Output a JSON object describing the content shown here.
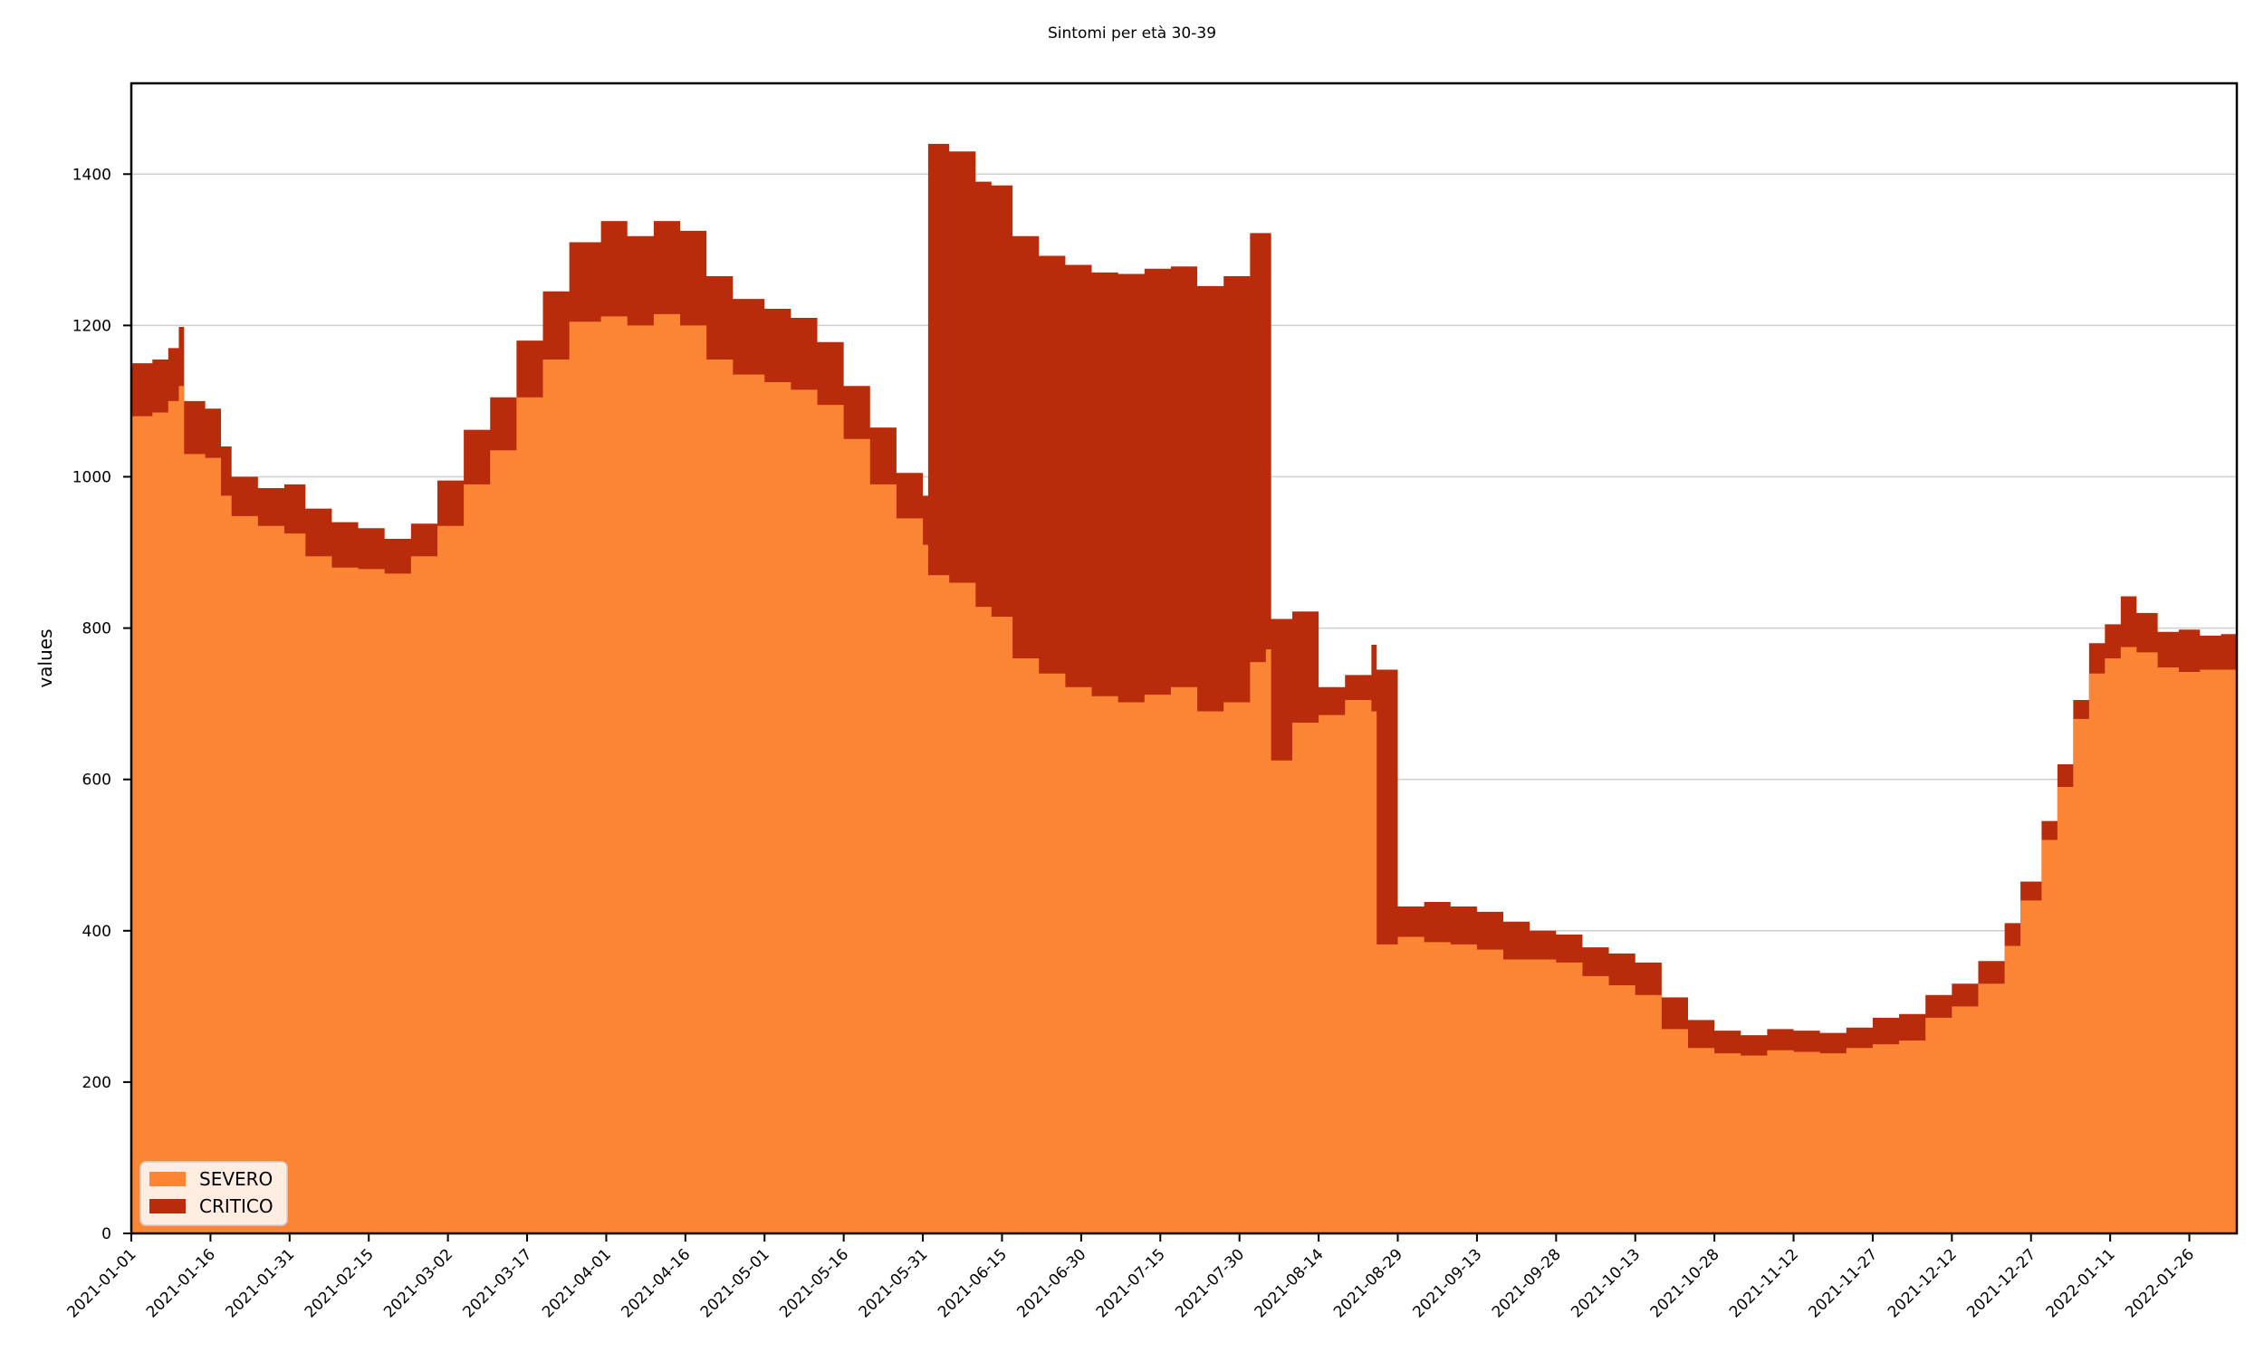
{
  "chart_data": {
    "type": "area",
    "stacked": true,
    "title": "Sintomi per età 30-39",
    "xlabel": "",
    "ylabel": "values",
    "x_start": "2021-01-01",
    "x_end": "2022-02-04",
    "ylim": [
      0,
      1520
    ],
    "yticks": [
      0,
      200,
      400,
      600,
      800,
      1000,
      1200,
      1400
    ],
    "xticks": [
      "2021-01-01",
      "2021-01-16",
      "2021-01-31",
      "2021-02-15",
      "2021-03-02",
      "2021-03-17",
      "2021-04-01",
      "2021-04-16",
      "2021-05-01",
      "2021-05-16",
      "2021-05-31",
      "2021-06-15",
      "2021-06-30",
      "2021-07-15",
      "2021-07-30",
      "2021-08-14",
      "2021-08-29",
      "2021-09-13",
      "2021-09-28",
      "2021-10-13",
      "2021-10-28",
      "2021-11-12",
      "2021-11-27",
      "2021-12-12",
      "2021-12-27",
      "2022-01-11",
      "2022-01-26"
    ],
    "grid": "horizontal",
    "legend_position": "lower-left",
    "series": [
      {
        "name": "SEVERO",
        "color": "#fb8535",
        "points": [
          [
            "2021-01-01",
            1080
          ],
          [
            "2021-01-05",
            1085
          ],
          [
            "2021-01-08",
            1100
          ],
          [
            "2021-01-10",
            1120
          ],
          [
            "2021-01-11",
            1030
          ],
          [
            "2021-01-15",
            1025
          ],
          [
            "2021-01-18",
            975
          ],
          [
            "2021-01-20",
            948
          ],
          [
            "2021-01-25",
            935
          ],
          [
            "2021-01-30",
            925
          ],
          [
            "2021-02-03",
            895
          ],
          [
            "2021-02-08",
            880
          ],
          [
            "2021-02-13",
            878
          ],
          [
            "2021-02-18",
            872
          ],
          [
            "2021-02-23",
            895
          ],
          [
            "2021-02-28",
            935
          ],
          [
            "2021-03-05",
            990
          ],
          [
            "2021-03-10",
            1035
          ],
          [
            "2021-03-15",
            1105
          ],
          [
            "2021-03-20",
            1155
          ],
          [
            "2021-03-25",
            1205
          ],
          [
            "2021-03-31",
            1212
          ],
          [
            "2021-04-05",
            1200
          ],
          [
            "2021-04-10",
            1215
          ],
          [
            "2021-04-15",
            1200
          ],
          [
            "2021-04-20",
            1155
          ],
          [
            "2021-04-25",
            1135
          ],
          [
            "2021-05-01",
            1125
          ],
          [
            "2021-05-06",
            1115
          ],
          [
            "2021-05-11",
            1095
          ],
          [
            "2021-05-16",
            1050
          ],
          [
            "2021-05-21",
            990
          ],
          [
            "2021-05-26",
            945
          ],
          [
            "2021-05-31",
            910
          ],
          [
            "2021-06-01",
            870
          ],
          [
            "2021-06-05",
            860
          ],
          [
            "2021-06-10",
            828
          ],
          [
            "2021-06-13",
            815
          ],
          [
            "2021-06-17",
            760
          ],
          [
            "2021-06-22",
            740
          ],
          [
            "2021-06-27",
            722
          ],
          [
            "2021-07-02",
            710
          ],
          [
            "2021-07-07",
            702
          ],
          [
            "2021-07-12",
            712
          ],
          [
            "2021-07-17",
            722
          ],
          [
            "2021-07-22",
            690
          ],
          [
            "2021-07-27",
            702
          ],
          [
            "2021-08-01",
            755
          ],
          [
            "2021-08-04",
            772
          ],
          [
            "2021-08-05",
            625
          ],
          [
            "2021-08-09",
            675
          ],
          [
            "2021-08-14",
            685
          ],
          [
            "2021-08-19",
            705
          ],
          [
            "2021-08-24",
            690
          ],
          [
            "2021-08-25",
            382
          ],
          [
            "2021-08-29",
            392
          ],
          [
            "2021-09-03",
            385
          ],
          [
            "2021-09-08",
            382
          ],
          [
            "2021-09-13",
            375
          ],
          [
            "2021-09-18",
            362
          ],
          [
            "2021-09-23",
            362
          ],
          [
            "2021-09-28",
            358
          ],
          [
            "2021-10-03",
            340
          ],
          [
            "2021-10-08",
            328
          ],
          [
            "2021-10-13",
            315
          ],
          [
            "2021-10-18",
            270
          ],
          [
            "2021-10-23",
            245
          ],
          [
            "2021-10-28",
            238
          ],
          [
            "2021-11-02",
            235
          ],
          [
            "2021-11-07",
            242
          ],
          [
            "2021-11-12",
            240
          ],
          [
            "2021-11-17",
            238
          ],
          [
            "2021-11-22",
            245
          ],
          [
            "2021-11-27",
            250
          ],
          [
            "2021-12-02",
            255
          ],
          [
            "2021-12-07",
            285
          ],
          [
            "2021-12-12",
            300
          ],
          [
            "2021-12-17",
            330
          ],
          [
            "2021-12-22",
            380
          ],
          [
            "2021-12-25",
            440
          ],
          [
            "2021-12-29",
            520
          ],
          [
            "2022-01-01",
            590
          ],
          [
            "2022-01-04",
            680
          ],
          [
            "2022-01-07",
            740
          ],
          [
            "2022-01-10",
            760
          ],
          [
            "2022-01-13",
            775
          ],
          [
            "2022-01-16",
            768
          ],
          [
            "2022-01-20",
            748
          ],
          [
            "2022-01-24",
            742
          ],
          [
            "2022-01-28",
            745
          ],
          [
            "2022-02-01",
            745
          ],
          [
            "2022-02-04",
            722
          ]
        ]
      },
      {
        "name": "CRITICO",
        "color": "#b82c0c",
        "points": [
          [
            "2021-01-01",
            1150
          ],
          [
            "2021-01-05",
            1155
          ],
          [
            "2021-01-08",
            1170
          ],
          [
            "2021-01-10",
            1198
          ],
          [
            "2021-01-11",
            1100
          ],
          [
            "2021-01-15",
            1090
          ],
          [
            "2021-01-18",
            1040
          ],
          [
            "2021-01-20",
            1000
          ],
          [
            "2021-01-25",
            985
          ],
          [
            "2021-01-30",
            990
          ],
          [
            "2021-02-03",
            958
          ],
          [
            "2021-02-08",
            940
          ],
          [
            "2021-02-13",
            932
          ],
          [
            "2021-02-18",
            918
          ],
          [
            "2021-02-23",
            938
          ],
          [
            "2021-02-28",
            995
          ],
          [
            "2021-03-05",
            1062
          ],
          [
            "2021-03-10",
            1105
          ],
          [
            "2021-03-15",
            1180
          ],
          [
            "2021-03-20",
            1245
          ],
          [
            "2021-03-25",
            1310
          ],
          [
            "2021-03-31",
            1338
          ],
          [
            "2021-04-05",
            1318
          ],
          [
            "2021-04-10",
            1338
          ],
          [
            "2021-04-15",
            1325
          ],
          [
            "2021-04-20",
            1265
          ],
          [
            "2021-04-25",
            1235
          ],
          [
            "2021-05-01",
            1222
          ],
          [
            "2021-05-06",
            1210
          ],
          [
            "2021-05-11",
            1178
          ],
          [
            "2021-05-16",
            1120
          ],
          [
            "2021-05-21",
            1065
          ],
          [
            "2021-05-26",
            1005
          ],
          [
            "2021-05-31",
            975
          ],
          [
            "2021-06-01",
            1440
          ],
          [
            "2021-06-05",
            1430
          ],
          [
            "2021-06-10",
            1390
          ],
          [
            "2021-06-13",
            1385
          ],
          [
            "2021-06-17",
            1318
          ],
          [
            "2021-06-22",
            1292
          ],
          [
            "2021-06-27",
            1280
          ],
          [
            "2021-07-02",
            1270
          ],
          [
            "2021-07-07",
            1268
          ],
          [
            "2021-07-12",
            1275
          ],
          [
            "2021-07-17",
            1278
          ],
          [
            "2021-07-22",
            1252
          ],
          [
            "2021-07-27",
            1265
          ],
          [
            "2021-08-01",
            1322
          ],
          [
            "2021-08-04",
            1322
          ],
          [
            "2021-08-05",
            812
          ],
          [
            "2021-08-09",
            822
          ],
          [
            "2021-08-14",
            722
          ],
          [
            "2021-08-19",
            738
          ],
          [
            "2021-08-24",
            778
          ],
          [
            "2021-08-25",
            745
          ],
          [
            "2021-08-29",
            432
          ],
          [
            "2021-09-03",
            438
          ],
          [
            "2021-09-08",
            432
          ],
          [
            "2021-09-13",
            425
          ],
          [
            "2021-09-18",
            412
          ],
          [
            "2021-09-23",
            400
          ],
          [
            "2021-09-28",
            395
          ],
          [
            "2021-10-03",
            378
          ],
          [
            "2021-10-08",
            370
          ],
          [
            "2021-10-13",
            358
          ],
          [
            "2021-10-18",
            312
          ],
          [
            "2021-10-23",
            282
          ],
          [
            "2021-10-28",
            268
          ],
          [
            "2021-11-02",
            262
          ],
          [
            "2021-11-07",
            270
          ],
          [
            "2021-11-12",
            268
          ],
          [
            "2021-11-17",
            265
          ],
          [
            "2021-11-22",
            272
          ],
          [
            "2021-11-27",
            285
          ],
          [
            "2021-12-02",
            290
          ],
          [
            "2021-12-07",
            315
          ],
          [
            "2021-12-12",
            330
          ],
          [
            "2021-12-17",
            360
          ],
          [
            "2021-12-22",
            410
          ],
          [
            "2021-12-25",
            465
          ],
          [
            "2021-12-29",
            545
          ],
          [
            "2022-01-01",
            620
          ],
          [
            "2022-01-04",
            705
          ],
          [
            "2022-01-07",
            780
          ],
          [
            "2022-01-10",
            805
          ],
          [
            "2022-01-13",
            842
          ],
          [
            "2022-01-16",
            820
          ],
          [
            "2022-01-20",
            795
          ],
          [
            "2022-01-24",
            798
          ],
          [
            "2022-01-28",
            790
          ],
          [
            "2022-02-01",
            792
          ],
          [
            "2022-02-04",
            770
          ]
        ]
      }
    ]
  }
}
